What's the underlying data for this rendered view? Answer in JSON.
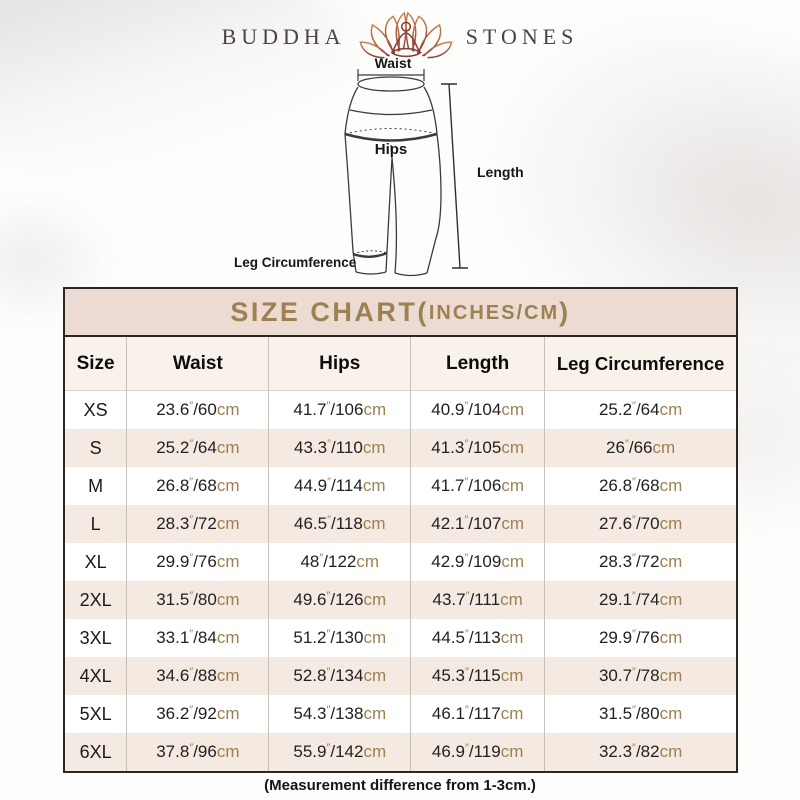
{
  "brand": {
    "name_left": "BUDDHA",
    "name_right": "STONES",
    "logo": "lotus-meditation-icon"
  },
  "diagram": {
    "waist_label": "Waist",
    "hips_label": "Hips",
    "length_label": "Length",
    "leg_label": "Leg Circumference"
  },
  "size_chart": {
    "title_main": "SIZE CHART(",
    "title_unit": "INCHES/CM",
    "title_close": ")",
    "columns": [
      "Size",
      "Waist",
      "Hips",
      "Length",
      "Leg Circumference"
    ],
    "inch_mark": "″",
    "cm_unit": "cm",
    "rows": [
      {
        "size": "XS",
        "waist": [
          "23.6",
          "60"
        ],
        "hips": [
          "41.7",
          "106"
        ],
        "length": [
          "40.9",
          "104"
        ],
        "leg": [
          "25.2",
          "64"
        ]
      },
      {
        "size": "S",
        "waist": [
          "25.2",
          "64"
        ],
        "hips": [
          "43.3",
          "110"
        ],
        "length": [
          "41.3",
          "105"
        ],
        "leg": [
          "26",
          "66"
        ]
      },
      {
        "size": "M",
        "waist": [
          "26.8",
          "68"
        ],
        "hips": [
          "44.9",
          "114"
        ],
        "length": [
          "41.7",
          "106"
        ],
        "leg": [
          "26.8",
          "68"
        ]
      },
      {
        "size": "L",
        "waist": [
          "28.3",
          "72"
        ],
        "hips": [
          "46.5",
          "118"
        ],
        "length": [
          "42.1",
          "107"
        ],
        "leg": [
          "27.6",
          "70"
        ]
      },
      {
        "size": "XL",
        "waist": [
          "29.9",
          "76"
        ],
        "hips": [
          "48",
          "122"
        ],
        "length": [
          "42.9",
          "109"
        ],
        "leg": [
          "28.3",
          "72"
        ]
      },
      {
        "size": "2XL",
        "waist": [
          "31.5",
          "80"
        ],
        "hips": [
          "49.6",
          "126"
        ],
        "length": [
          "43.7",
          "111"
        ],
        "leg": [
          "29.1",
          "74"
        ]
      },
      {
        "size": "3XL",
        "waist": [
          "33.1",
          "84"
        ],
        "hips": [
          "51.2",
          "130"
        ],
        "length": [
          "44.5",
          "113"
        ],
        "leg": [
          "29.9",
          "76"
        ]
      },
      {
        "size": "4XL",
        "waist": [
          "34.6",
          "88"
        ],
        "hips": [
          "52.8",
          "134"
        ],
        "length": [
          "45.3",
          "115"
        ],
        "leg": [
          "30.7",
          "78"
        ]
      },
      {
        "size": "5XL",
        "waist": [
          "36.2",
          "92"
        ],
        "hips": [
          "54.3",
          "138"
        ],
        "length": [
          "46.1",
          "117"
        ],
        "leg": [
          "31.5",
          "80"
        ]
      },
      {
        "size": "6XL",
        "waist": [
          "37.8",
          "96"
        ],
        "hips": [
          "55.9",
          "142"
        ],
        "length": [
          "46.9",
          "119"
        ],
        "leg": [
          "32.3",
          "82"
        ]
      }
    ]
  },
  "footer_note": "(Measurement difference from 1-3cm.)",
  "colors": {
    "accent_gold": "#9d8152",
    "title_bar_bg": "#ecdbd2",
    "header_row_bg": "#f8f2eb",
    "alt_row_bg": "#f4eae1",
    "table_border": "#2b2622",
    "logo_orange": "#c9834e",
    "logo_red": "#8d3a32",
    "brand_text": "#4c4243"
  }
}
